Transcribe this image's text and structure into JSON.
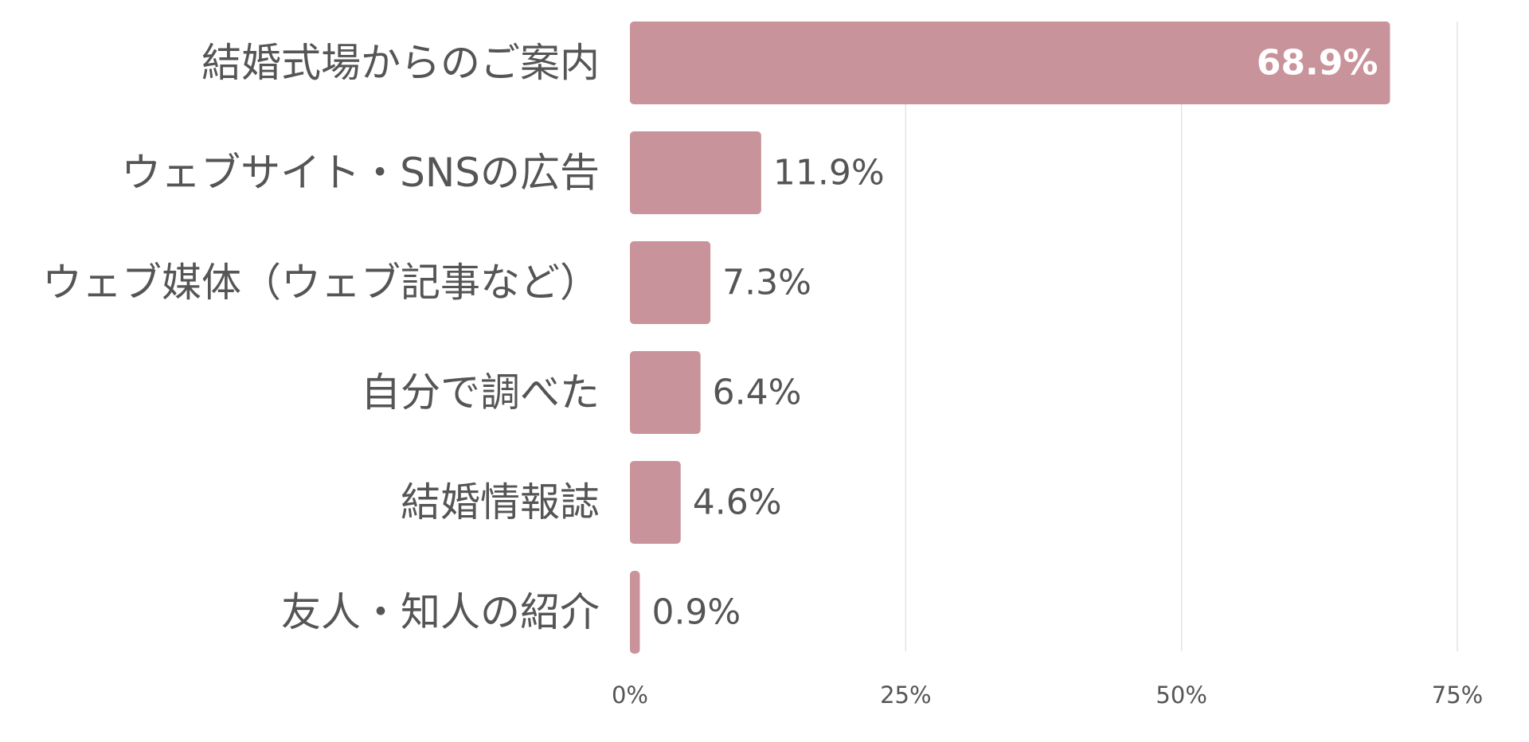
{
  "chart_data": {
    "type": "bar",
    "orientation": "horizontal",
    "categories": [
      "結婚式場からのご案内",
      "ウェブサイト・SNSの広告",
      "ウェブ媒体（ウェブ記事など）",
      "自分で調べた",
      "結婚情報誌",
      "友人・知人の紹介"
    ],
    "values": [
      68.9,
      11.9,
      7.3,
      6.4,
      4.6,
      0.9
    ],
    "value_labels": [
      "68.9%",
      "11.9%",
      "7.3%",
      "6.4%",
      "4.6%",
      "0.9%"
    ],
    "x_ticks": [
      0,
      25,
      50,
      75
    ],
    "x_tick_labels": [
      "0%",
      "25%",
      "50%",
      "75%"
    ],
    "xlim": [
      0,
      75
    ],
    "grid": true,
    "title": "",
    "xlabel": "",
    "ylabel": "",
    "bar_color": "#c9939b",
    "inside_label_color": "#ffffff",
    "text_color": "#555555",
    "grid_color": "#e3e3e3"
  }
}
